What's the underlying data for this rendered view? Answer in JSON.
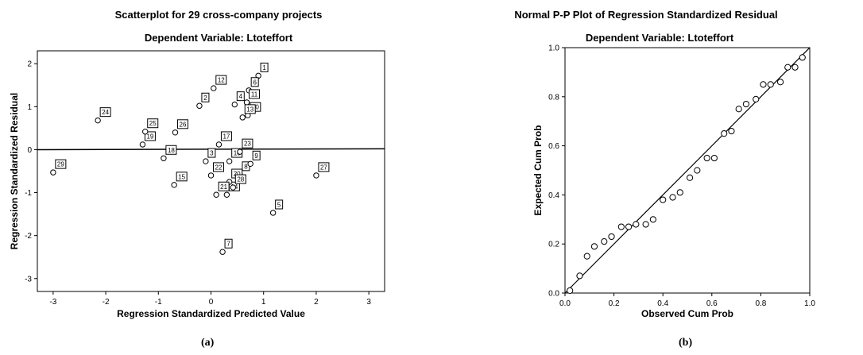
{
  "chart_data": [
    {
      "type": "scatter",
      "title": "Scatterplot for 29 cross-company projects",
      "subtitle": "Dependent Variable: Ltoteffort",
      "xlabel": "Regression Standardized Predicted Value",
      "ylabel": "Regression Standardized Residual",
      "xlim": [
        -3.3,
        3.3
      ],
      "ylim": [
        -3.3,
        2.3
      ],
      "xticks": [
        -3,
        -2,
        -1,
        0,
        1,
        2,
        3
      ],
      "yticks": [
        -3,
        -2,
        -1,
        0,
        1,
        2
      ],
      "caption": "(a)",
      "fit_line": {
        "x": [
          -3.3,
          3.3
        ],
        "y": [
          0.0,
          0.02
        ]
      },
      "points": [
        {
          "label": "1",
          "x": 0.9,
          "y": 1.72
        },
        {
          "label": "2",
          "x": -0.22,
          "y": 1.02
        },
        {
          "label": "3",
          "x": -0.1,
          "y": -0.27
        },
        {
          "label": "4",
          "x": 0.45,
          "y": 1.05
        },
        {
          "label": "5",
          "x": 1.18,
          "y": -1.47
        },
        {
          "label": "6",
          "x": 0.72,
          "y": 1.38
        },
        {
          "label": "7",
          "x": 0.22,
          "y": -2.38
        },
        {
          "label": "8",
          "x": 0.55,
          "y": -0.58
        },
        {
          "label": "9",
          "x": 0.75,
          "y": -0.33
        },
        {
          "label": "10",
          "x": 0.7,
          "y": 0.8
        },
        {
          "label": "11",
          "x": 0.68,
          "y": 1.1
        },
        {
          "label": "12",
          "x": 0.05,
          "y": 1.43
        },
        {
          "label": "13",
          "x": 0.6,
          "y": 0.75
        },
        {
          "label": "14",
          "x": 0.3,
          "y": -1.05
        },
        {
          "label": "15",
          "x": -0.7,
          "y": -0.82
        },
        {
          "label": "16",
          "x": 0.35,
          "y": -0.27
        },
        {
          "label": "17",
          "x": 0.15,
          "y": 0.12
        },
        {
          "label": "18",
          "x": -0.9,
          "y": -0.2
        },
        {
          "label": "19",
          "x": -1.3,
          "y": 0.12
        },
        {
          "label": "20",
          "x": 0.35,
          "y": -0.75
        },
        {
          "label": "21",
          "x": 0.1,
          "y": -1.05
        },
        {
          "label": "22",
          "x": 0.0,
          "y": -0.6
        },
        {
          "label": "23",
          "x": 0.55,
          "y": -0.05
        },
        {
          "label": "24",
          "x": -2.15,
          "y": 0.68
        },
        {
          "label": "25",
          "x": -1.25,
          "y": 0.42
        },
        {
          "label": "26",
          "x": -0.68,
          "y": 0.4
        },
        {
          "label": "27",
          "x": 2.0,
          "y": -0.6
        },
        {
          "label": "28",
          "x": 0.42,
          "y": -0.88
        },
        {
          "label": "29",
          "x": -3.0,
          "y": -0.53
        }
      ]
    },
    {
      "type": "scatter",
      "title": "Normal P-P Plot of Regression Standardized Residual",
      "subtitle": "Dependent Variable: Ltoteffort",
      "xlabel": "Observed Cum Prob",
      "ylabel": "Expected Cum Prob",
      "xlim": [
        0,
        1
      ],
      "ylim": [
        0,
        1
      ],
      "xticks": [
        "0.0",
        "0.2",
        "0.4",
        "0.6",
        "0.8",
        "1.0"
      ],
      "yticks": [
        "0.0",
        "0.2",
        "0.4",
        "0.6",
        "0.8",
        "1.0"
      ],
      "caption": "(b)",
      "reference_line": {
        "x": [
          0,
          1
        ],
        "y": [
          0,
          1
        ]
      },
      "x": [
        0.02,
        0.06,
        0.09,
        0.12,
        0.16,
        0.19,
        0.23,
        0.26,
        0.29,
        0.33,
        0.36,
        0.4,
        0.44,
        0.47,
        0.51,
        0.54,
        0.58,
        0.61,
        0.65,
        0.68,
        0.71,
        0.74,
        0.78,
        0.81,
        0.84,
        0.88,
        0.91,
        0.94,
        0.97
      ],
      "y": [
        0.01,
        0.07,
        0.15,
        0.19,
        0.21,
        0.23,
        0.27,
        0.27,
        0.28,
        0.28,
        0.3,
        0.38,
        0.39,
        0.41,
        0.47,
        0.5,
        0.55,
        0.55,
        0.65,
        0.66,
        0.75,
        0.77,
        0.79,
        0.85,
        0.85,
        0.86,
        0.92,
        0.92,
        0.96
      ]
    }
  ]
}
